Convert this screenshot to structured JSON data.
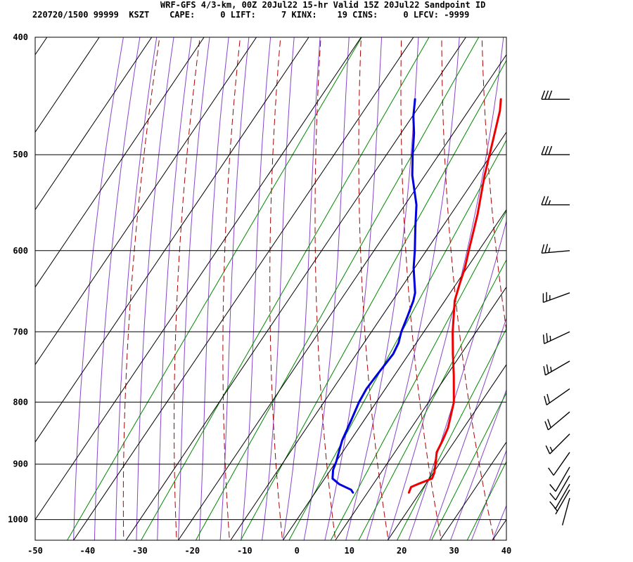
{
  "header": {
    "title": "WRF-GFS 4/3-km, 00Z 20Jul22 15-hr Valid 15Z 20Jul22 Sandpoint ID",
    "meta": "220720/1500 99999  KSZT    CAPE:     0 LIFT:     7 KINX:    19 CINS:     0 LFCV: -9999"
  },
  "chart_data": {
    "type": "line",
    "x_axis": {
      "ticks": [
        -50,
        -40,
        -30,
        -20,
        -10,
        0,
        10,
        20,
        30,
        40
      ],
      "range": [
        -50,
        40
      ],
      "skew": true
    },
    "y_axis": {
      "ticks": [
        400,
        500,
        600,
        700,
        800,
        900,
        1000
      ],
      "range": [
        400,
        1040
      ],
      "scale": "log",
      "reversed": true
    },
    "grid": true,
    "colors": {
      "temperature": "#ee0000",
      "dewpoint": "#0000dd",
      "isotherm_grid": "#000000",
      "dry_adiabat": "#aa0000",
      "moist_adiabat": "#8844cc",
      "mixing_ratio": "#008800",
      "wind_barb": "#000000"
    },
    "series": [
      {
        "values": [
          [
            950,
            17.9
          ],
          [
            940,
            17.6
          ],
          [
            935,
            18.5
          ],
          [
            925,
            20.5
          ],
          [
            915,
            20.2
          ],
          [
            900,
            19.3
          ],
          [
            880,
            18.0
          ],
          [
            860,
            17.6
          ],
          [
            840,
            17.0
          ],
          [
            800,
            14.8
          ],
          [
            760,
            11.3
          ],
          [
            730,
            8.4
          ],
          [
            700,
            5.5
          ],
          [
            660,
            1.9
          ],
          [
            640,
            0.7
          ],
          [
            620,
            -0.4
          ],
          [
            600,
            -1.9
          ],
          [
            560,
            -4.9
          ],
          [
            520,
            -8.6
          ],
          [
            500,
            -10.3
          ],
          [
            460,
            -14.0
          ],
          [
            450,
            -15.3
          ]
        ]
      },
      {
        "values": [
          [
            950,
            7.2
          ],
          [
            945,
            6.5
          ],
          [
            935,
            3.5
          ],
          [
            925,
            1.5
          ],
          [
            910,
            0.5
          ],
          [
            895,
            0.0
          ],
          [
            880,
            -0.7
          ],
          [
            860,
            -1.6
          ],
          [
            830,
            -2.4
          ],
          [
            800,
            -3.3
          ],
          [
            780,
            -3.6
          ],
          [
            760,
            -3.4
          ],
          [
            730,
            -3.0
          ],
          [
            715,
            -3.4
          ],
          [
            700,
            -4.3
          ],
          [
            680,
            -5.1
          ],
          [
            660,
            -6.0
          ],
          [
            650,
            -6.7
          ],
          [
            620,
            -10.2
          ],
          [
            600,
            -12.2
          ],
          [
            575,
            -15.0
          ],
          [
            550,
            -17.8
          ],
          [
            520,
            -22.4
          ],
          [
            500,
            -25.0
          ],
          [
            480,
            -27.5
          ],
          [
            465,
            -29.8
          ],
          [
            450,
            -31.7
          ]
        ]
      }
    ],
    "wind_barbs": [
      {
        "p": 450,
        "dir": 270,
        "speed": 30
      },
      {
        "p": 500,
        "dir": 270,
        "speed": 30
      },
      {
        "p": 550,
        "dir": 270,
        "speed": 25
      },
      {
        "p": 600,
        "dir": 265,
        "speed": 25
      },
      {
        "p": 650,
        "dir": 250,
        "speed": 25
      },
      {
        "p": 700,
        "dir": 245,
        "speed": 25
      },
      {
        "p": 740,
        "dir": 240,
        "speed": 25
      },
      {
        "p": 780,
        "dir": 235,
        "speed": 20
      },
      {
        "p": 815,
        "dir": 230,
        "speed": 20
      },
      {
        "p": 850,
        "dir": 225,
        "speed": 15
      },
      {
        "p": 880,
        "dir": 215,
        "speed": 10
      },
      {
        "p": 905,
        "dir": 210,
        "speed": 10
      },
      {
        "p": 920,
        "dir": 210,
        "speed": 10
      },
      {
        "p": 935,
        "dir": 210,
        "speed": 10
      },
      {
        "p": 945,
        "dir": 210,
        "speed": 5
      },
      {
        "p": 960,
        "dir": 195,
        "speed": 0
      }
    ]
  }
}
